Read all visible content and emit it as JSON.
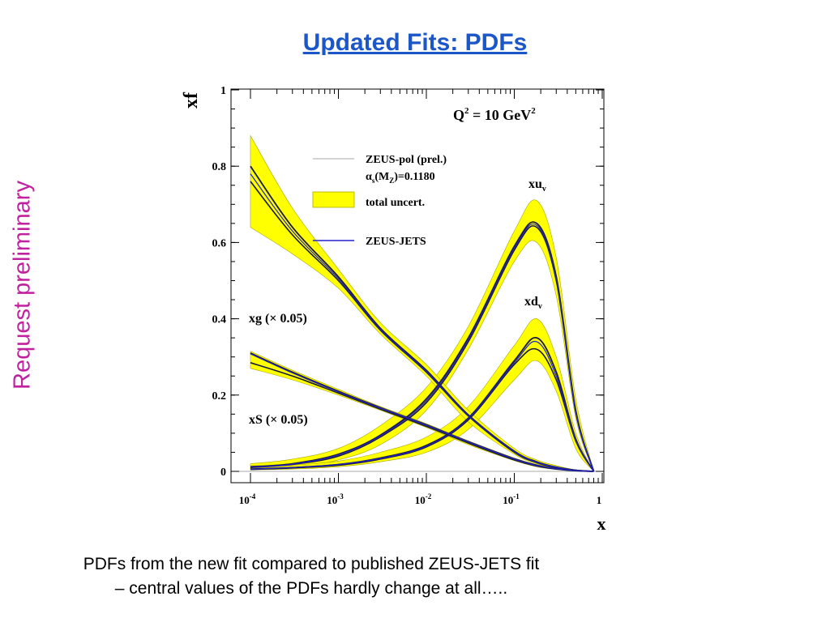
{
  "slide": {
    "title": "Updated Fits: PDFs",
    "side_note": "Request preliminary",
    "caption_line1": "PDFs from the new fit compared to published ZEUS-JETS fit",
    "caption_line2": "– central values of the PDFs hardly change at all…..",
    "title_color": "#1c57c9",
    "side_note_color": "#c0219e"
  },
  "chart_data": {
    "type": "line",
    "xscale": "log",
    "xlim": [
      0.0001,
      1
    ],
    "ylim": [
      0,
      1
    ],
    "xlabel": "x",
    "ylabel": "xf",
    "annotation": {
      "q": "Q",
      "q_exp": "2",
      "rest": " = 10 GeV",
      "unit_exp": "2"
    },
    "x_ticks": [
      {
        "value": 0.0001,
        "base": "10",
        "exp": "-4"
      },
      {
        "value": 0.001,
        "base": "10",
        "exp": "-3"
      },
      {
        "value": 0.01,
        "base": "10",
        "exp": "-2"
      },
      {
        "value": 0.1,
        "base": "10",
        "exp": "-1"
      },
      {
        "value": 1,
        "base": "1",
        "exp": ""
      }
    ],
    "y_ticks": [
      {
        "value": 0,
        "label": "0"
      },
      {
        "value": 0.2,
        "label": "0.2"
      },
      {
        "value": 0.4,
        "label": "0.4"
      },
      {
        "value": 0.6,
        "label": "0.6"
      },
      {
        "value": 0.8,
        "label": "0.8"
      },
      {
        "value": 1,
        "label": "1"
      }
    ],
    "legend": {
      "pol": "ZEUS-pol (prel.)",
      "alpha_s": {
        "alpha": "α",
        "s": "s",
        "open": "(M",
        "z": "Z",
        "rest": ")=0.1180"
      },
      "band": "total uncert.",
      "jets": "ZEUS-JETS"
    },
    "curve_labels": [
      {
        "id": "xuv",
        "main": "xu",
        "sub": "v"
      },
      {
        "id": "xdv",
        "main": "xd",
        "sub": "v"
      },
      {
        "id": "xg",
        "main": "xg (× 0.05)"
      },
      {
        "id": "xs",
        "main": "xS (× 0.05)"
      }
    ],
    "colors": {
      "band": "#ffff00",
      "band_edge": "#a8a800",
      "pol": "#1a1a3a",
      "jets": "#2222cc",
      "pol_legend_line": "#bbbbbb"
    },
    "x": [
      0.0001,
      0.0003,
      0.001,
      0.003,
      0.01,
      0.03,
      0.1,
      0.18,
      0.3,
      0.5,
      0.8
    ],
    "series": [
      {
        "id": "xuv",
        "band_upper": [
          0.02,
          0.032,
          0.06,
          0.12,
          0.22,
          0.38,
          0.63,
          0.71,
          0.56,
          0.19,
          0.0
        ],
        "band_lower": [
          0.005,
          0.01,
          0.03,
          0.07,
          0.16,
          0.32,
          0.55,
          0.6,
          0.46,
          0.14,
          0.0
        ],
        "pol": [
          0.012,
          0.02,
          0.045,
          0.095,
          0.19,
          0.35,
          0.59,
          0.65,
          0.51,
          0.16,
          0.0
        ],
        "pol_alt": [
          0.01,
          0.018,
          0.04,
          0.09,
          0.18,
          0.34,
          0.58,
          0.64,
          0.5,
          0.155,
          0.0
        ],
        "jets": [
          0.011,
          0.019,
          0.043,
          0.093,
          0.185,
          0.345,
          0.585,
          0.645,
          0.505,
          0.158,
          0.0
        ]
      },
      {
        "id": "xdv",
        "band_upper": [
          0.01,
          0.016,
          0.027,
          0.05,
          0.09,
          0.17,
          0.33,
          0.4,
          0.3,
          0.1,
          0.0
        ],
        "band_lower": [
          0.004,
          0.006,
          0.012,
          0.025,
          0.05,
          0.11,
          0.24,
          0.29,
          0.21,
          0.06,
          0.0
        ],
        "pol": [
          0.006,
          0.01,
          0.018,
          0.035,
          0.068,
          0.14,
          0.29,
          0.35,
          0.26,
          0.085,
          0.0
        ],
        "pol_alt": [
          0.005,
          0.009,
          0.016,
          0.032,
          0.064,
          0.135,
          0.28,
          0.32,
          0.24,
          0.08,
          0.0
        ],
        "jets": [
          0.006,
          0.01,
          0.018,
          0.034,
          0.066,
          0.138,
          0.285,
          0.34,
          0.25,
          0.083,
          0.0
        ]
      },
      {
        "id": "xg",
        "band_upper": [
          0.88,
          0.69,
          0.53,
          0.39,
          0.28,
          0.16,
          0.06,
          0.03,
          0.015,
          0.004,
          0.0
        ],
        "band_lower": [
          0.64,
          0.57,
          0.48,
          0.36,
          0.25,
          0.13,
          0.045,
          0.02,
          0.008,
          0.002,
          0.0
        ],
        "pol": [
          0.8,
          0.64,
          0.51,
          0.375,
          0.265,
          0.148,
          0.053,
          0.025,
          0.011,
          0.003,
          0.0
        ],
        "pol_alt": [
          0.76,
          0.62,
          0.5,
          0.37,
          0.26,
          0.145,
          0.05,
          0.023,
          0.01,
          0.003,
          0.0
        ],
        "jets": [
          0.78,
          0.63,
          0.505,
          0.372,
          0.262,
          0.146,
          0.052,
          0.024,
          0.011,
          0.003,
          0.0
        ]
      },
      {
        "id": "xs",
        "band_upper": [
          0.315,
          0.265,
          0.215,
          0.17,
          0.125,
          0.08,
          0.035,
          0.018,
          0.008,
          0.002,
          0.0
        ],
        "band_lower": [
          0.27,
          0.24,
          0.2,
          0.16,
          0.115,
          0.07,
          0.028,
          0.012,
          0.005,
          0.001,
          0.0
        ],
        "pol": [
          0.31,
          0.26,
          0.21,
          0.167,
          0.122,
          0.078,
          0.033,
          0.016,
          0.007,
          0.002,
          0.0
        ],
        "pol_alt": [
          0.285,
          0.25,
          0.205,
          0.163,
          0.118,
          0.074,
          0.03,
          0.014,
          0.006,
          0.0015,
          0.0
        ],
        "jets": [
          0.308,
          0.258,
          0.208,
          0.166,
          0.121,
          0.077,
          0.032,
          0.015,
          0.007,
          0.002,
          0.0
        ]
      }
    ]
  }
}
